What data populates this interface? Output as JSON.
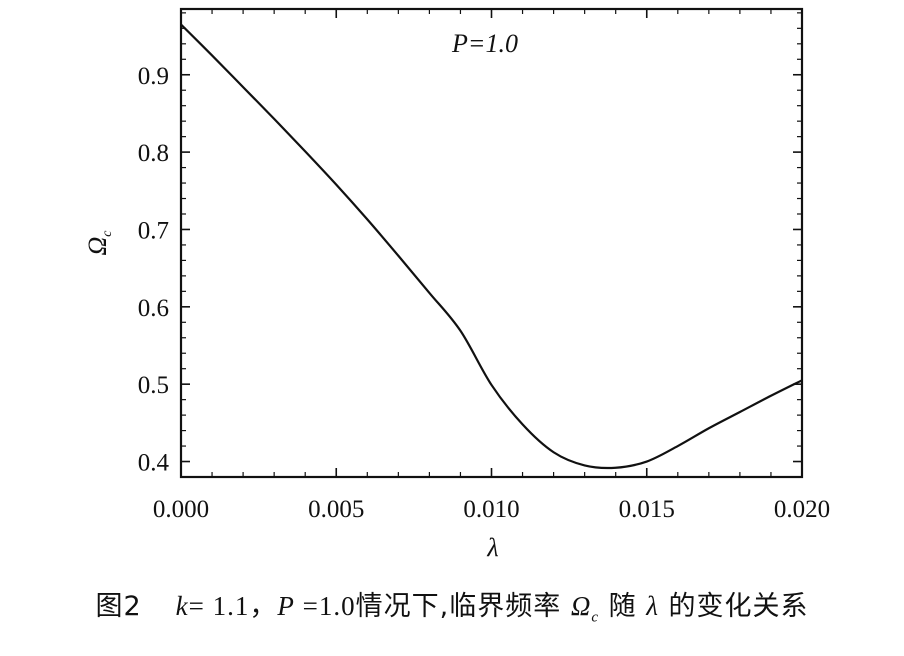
{
  "chart_data": {
    "type": "line",
    "annotation": "P=1.0",
    "xlabel": "λ",
    "ylabel": "Ω",
    "ylabel_subscript": "c",
    "xlim": [
      0.0,
      0.02
    ],
    "ylim": [
      0.38,
      0.985
    ],
    "x_ticks": [
      0.0,
      0.005,
      0.01,
      0.015,
      0.02
    ],
    "x_tick_labels": [
      "0.000",
      "0.005",
      "0.010",
      "0.015",
      "0.020"
    ],
    "y_ticks": [
      0.4,
      0.5,
      0.6,
      0.7,
      0.8,
      0.9
    ],
    "y_tick_labels": [
      "0.4",
      "0.5",
      "0.6",
      "0.7",
      "0.8",
      "0.9"
    ],
    "grid": false,
    "series": [
      {
        "x": [
          0.0,
          0.001,
          0.002,
          0.003,
          0.004,
          0.005,
          0.006,
          0.007,
          0.008,
          0.009,
          0.01,
          0.011,
          0.012,
          0.013,
          0.014,
          0.015,
          0.016,
          0.017,
          0.018,
          0.019,
          0.02
        ],
        "values": [
          0.965,
          0.925,
          0.884,
          0.843,
          0.801,
          0.758,
          0.713,
          0.666,
          0.618,
          0.569,
          0.499,
          0.448,
          0.412,
          0.395,
          0.392,
          0.4,
          0.42,
          0.443,
          0.464,
          0.485,
          0.505
        ]
      }
    ]
  },
  "caption": {
    "fig_label": "图2",
    "k_var": "k",
    "k_rest": "= 1.1",
    "sep": "，",
    "p_var": "P",
    "p_rest": " =1.0",
    "t1": "情况下,临界频率",
    "omega": "Ω",
    "omega_sub": "c",
    "t2": "随",
    "lambda": "λ",
    "t3": "的变化关系"
  }
}
